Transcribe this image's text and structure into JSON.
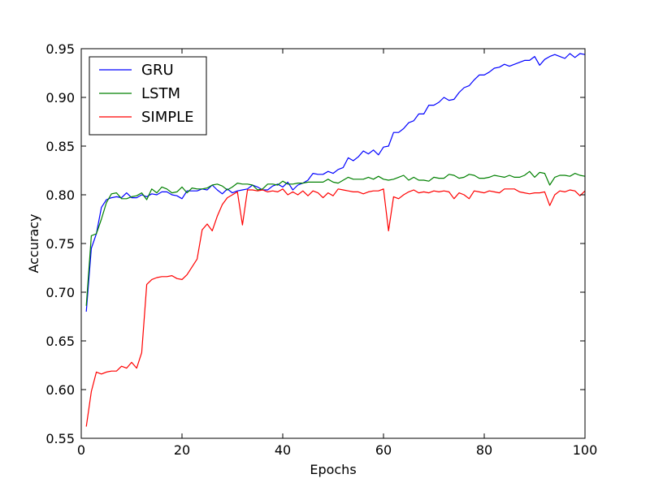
{
  "chart_data": {
    "type": "line",
    "title": "",
    "xlabel": "Epochs",
    "ylabel": "Accuracy",
    "xlim": [
      0,
      100
    ],
    "ylim": [
      0.55,
      0.95
    ],
    "xticks": [
      0,
      20,
      40,
      60,
      80,
      100
    ],
    "xtick_labels": [
      "0",
      "20",
      "40",
      "60",
      "80",
      "100"
    ],
    "yticks": [
      0.55,
      0.6,
      0.65,
      0.7,
      0.75,
      0.8,
      0.85,
      0.9,
      0.95
    ],
    "ytick_labels": [
      "0.55",
      "0.60",
      "0.65",
      "0.70",
      "0.75",
      "0.80",
      "0.85",
      "0.90",
      "0.95"
    ],
    "grid": false,
    "legend_position": "top-left",
    "x": [
      1,
      2,
      3,
      4,
      5,
      6,
      7,
      8,
      9,
      10,
      11,
      12,
      13,
      14,
      15,
      16,
      17,
      18,
      19,
      20,
      21,
      22,
      23,
      24,
      25,
      26,
      27,
      28,
      29,
      30,
      31,
      32,
      33,
      34,
      35,
      36,
      37,
      38,
      39,
      40,
      41,
      42,
      43,
      44,
      45,
      46,
      47,
      48,
      49,
      50,
      51,
      52,
      53,
      54,
      55,
      56,
      57,
      58,
      59,
      60,
      61,
      62,
      63,
      64,
      65,
      66,
      67,
      68,
      69,
      70,
      71,
      72,
      73,
      74,
      75,
      76,
      77,
      78,
      79,
      80,
      81,
      82,
      83,
      84,
      85,
      86,
      87,
      88,
      89,
      90,
      91,
      92,
      93,
      94,
      95,
      96,
      97,
      98,
      99,
      100
    ],
    "series": [
      {
        "name": "GRU",
        "color": "#0000ff",
        "values": [
          0.68,
          0.745,
          0.76,
          0.787,
          0.795,
          0.797,
          0.798,
          0.797,
          0.802,
          0.797,
          0.797,
          0.8,
          0.798,
          0.801,
          0.8,
          0.803,
          0.803,
          0.8,
          0.799,
          0.796,
          0.804,
          0.804,
          0.804,
          0.806,
          0.805,
          0.81,
          0.805,
          0.801,
          0.806,
          0.802,
          0.804,
          0.805,
          0.806,
          0.81,
          0.808,
          0.805,
          0.805,
          0.809,
          0.811,
          0.808,
          0.813,
          0.805,
          0.81,
          0.812,
          0.815,
          0.822,
          0.821,
          0.821,
          0.824,
          0.822,
          0.826,
          0.828,
          0.838,
          0.835,
          0.839,
          0.845,
          0.842,
          0.846,
          0.841,
          0.849,
          0.85,
          0.864,
          0.864,
          0.868,
          0.874,
          0.876,
          0.883,
          0.883,
          0.892,
          0.892,
          0.895,
          0.9,
          0.897,
          0.898,
          0.905,
          0.91,
          0.912,
          0.918,
          0.923,
          0.923,
          0.926,
          0.93,
          0.931,
          0.934,
          0.932,
          0.934,
          0.936,
          0.938,
          0.938,
          0.942,
          0.933,
          0.939,
          0.942,
          0.944,
          0.942,
          0.94,
          0.945,
          0.941,
          0.945,
          0.944
        ]
      },
      {
        "name": "LSTM",
        "color": "#008000",
        "values": [
          0.686,
          0.758,
          0.76,
          0.775,
          0.792,
          0.801,
          0.802,
          0.796,
          0.796,
          0.798,
          0.799,
          0.802,
          0.795,
          0.806,
          0.802,
          0.808,
          0.806,
          0.802,
          0.803,
          0.808,
          0.802,
          0.807,
          0.806,
          0.806,
          0.807,
          0.81,
          0.811,
          0.809,
          0.805,
          0.808,
          0.812,
          0.811,
          0.811,
          0.81,
          0.805,
          0.806,
          0.811,
          0.811,
          0.81,
          0.814,
          0.811,
          0.811,
          0.812,
          0.812,
          0.813,
          0.813,
          0.813,
          0.813,
          0.816,
          0.813,
          0.812,
          0.815,
          0.818,
          0.816,
          0.816,
          0.816,
          0.818,
          0.816,
          0.819,
          0.816,
          0.815,
          0.816,
          0.818,
          0.82,
          0.815,
          0.818,
          0.815,
          0.815,
          0.814,
          0.818,
          0.817,
          0.817,
          0.821,
          0.82,
          0.817,
          0.818,
          0.821,
          0.82,
          0.817,
          0.817,
          0.818,
          0.82,
          0.819,
          0.818,
          0.82,
          0.818,
          0.818,
          0.82,
          0.824,
          0.818,
          0.823,
          0.822,
          0.81,
          0.818,
          0.82,
          0.82,
          0.819,
          0.822,
          0.82,
          0.819
        ]
      },
      {
        "name": "SIMPLE",
        "color": "#ff0000",
        "values": [
          0.562,
          0.598,
          0.618,
          0.616,
          0.618,
          0.619,
          0.619,
          0.624,
          0.622,
          0.628,
          0.622,
          0.638,
          0.708,
          0.713,
          0.715,
          0.716,
          0.716,
          0.717,
          0.714,
          0.713,
          0.718,
          0.726,
          0.734,
          0.764,
          0.77,
          0.763,
          0.778,
          0.79,
          0.797,
          0.8,
          0.803,
          0.769,
          0.805,
          0.805,
          0.804,
          0.805,
          0.803,
          0.804,
          0.803,
          0.806,
          0.8,
          0.803,
          0.8,
          0.804,
          0.799,
          0.804,
          0.802,
          0.797,
          0.802,
          0.799,
          0.806,
          0.805,
          0.804,
          0.803,
          0.803,
          0.801,
          0.803,
          0.804,
          0.804,
          0.806,
          0.763,
          0.798,
          0.796,
          0.8,
          0.803,
          0.805,
          0.802,
          0.803,
          0.802,
          0.804,
          0.803,
          0.804,
          0.803,
          0.796,
          0.802,
          0.8,
          0.796,
          0.804,
          0.803,
          0.802,
          0.804,
          0.803,
          0.802,
          0.806,
          0.806,
          0.806,
          0.803,
          0.802,
          0.801,
          0.802,
          0.802,
          0.803,
          0.789,
          0.8,
          0.804,
          0.803,
          0.805,
          0.804,
          0.799,
          0.804
        ]
      }
    ]
  }
}
